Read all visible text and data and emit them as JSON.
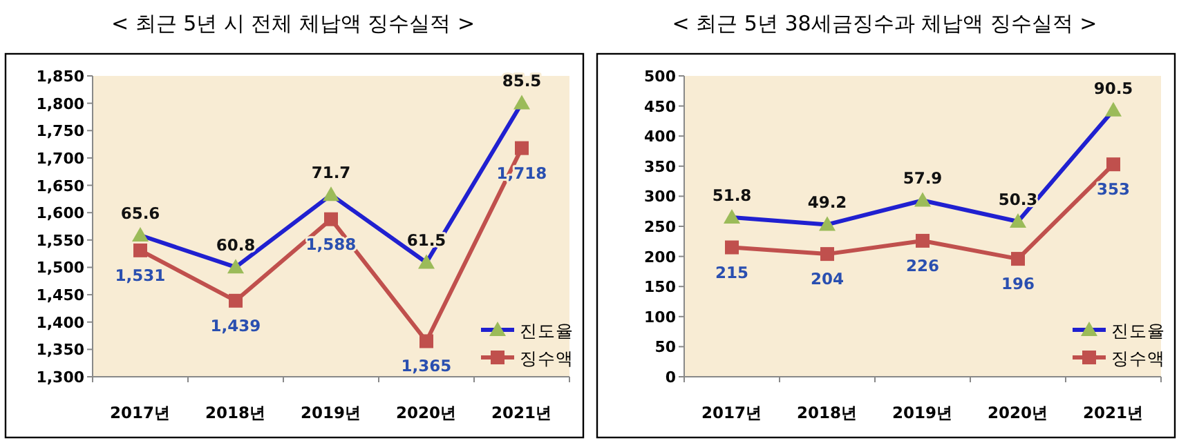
{
  "chart_data": [
    {
      "type": "line",
      "title": "< 최근 5년 시 전체 체납액 징수실적 >",
      "categories": [
        "2017년",
        "2018년",
        "2019년",
        "2020년",
        "2021년"
      ],
      "ylim": [
        1300,
        1850
      ],
      "yticks": [
        {
          "value": 1300,
          "label": "1,300"
        },
        {
          "value": 1350,
          "label": "1,350"
        },
        {
          "value": 1400,
          "label": "1,400"
        },
        {
          "value": 1450,
          "label": "1,450"
        },
        {
          "value": 1500,
          "label": "1,500"
        },
        {
          "value": 1550,
          "label": "1,550"
        },
        {
          "value": 1600,
          "label": "1,600"
        },
        {
          "value": 1650,
          "label": "1,650"
        },
        {
          "value": 1700,
          "label": "1,700"
        },
        {
          "value": 1750,
          "label": "1,750"
        },
        {
          "value": 1800,
          "label": "1,800"
        },
        {
          "value": 1850,
          "label": "1,850"
        }
      ],
      "y2lim": [
        44.3,
        89.6
      ],
      "legend": "bottom right",
      "series": [
        {
          "name": "진도율",
          "axis": "y2",
          "color": "#2020d0",
          "marker": "triangle",
          "colors": [
            "#9bbb59",
            "#9bbb59",
            "#9bbb59",
            "#9bbb59",
            "#9bbb59"
          ],
          "values": [
            65.6,
            60.8,
            71.7,
            61.5,
            85.5
          ],
          "value_labels": [
            "65.6",
            "60.8",
            "71.7",
            "61.5",
            "85.5"
          ]
        },
        {
          "name": "징수액",
          "color": "#c0504d",
          "marker": "square",
          "values": [
            1531,
            1439,
            1588,
            1365,
            1718
          ],
          "value_labels": [
            "1,531",
            "1,439",
            "1,588",
            "1,365",
            "1,718"
          ]
        }
      ]
    },
    {
      "type": "line",
      "title": "< 최근 5년 38세금징수과 체납액 징수실적 >",
      "categories": [
        "2017년",
        "2018년",
        "2019년",
        "2020년",
        "2021년"
      ],
      "ylim": [
        0,
        500
      ],
      "yticks": [
        0,
        50,
        100,
        150,
        200,
        250,
        300,
        350,
        400,
        450,
        500
      ],
      "y2lim": [
        -5.8,
        102.9
      ],
      "legend": "bottom right",
      "series": [
        {
          "name": "진도율",
          "axis": "y2",
          "color": "#2020d0",
          "marker": "triangle",
          "colors": [
            "#9bbb59",
            "#9bbb59",
            "#9bbb59",
            "#9bbb59",
            "#9bbb59"
          ],
          "values": [
            51.8,
            49.2,
            57.9,
            50.3,
            90.5
          ],
          "value_labels": [
            "51.8",
            "49.2",
            "57.9",
            "50.3",
            "90.5"
          ]
        },
        {
          "name": "징수액",
          "color": "#c0504d",
          "marker": "square",
          "values": [
            215,
            204,
            226,
            196,
            353
          ],
          "value_labels": [
            "215",
            "204",
            "226",
            "196",
            "353"
          ]
        }
      ]
    }
  ]
}
